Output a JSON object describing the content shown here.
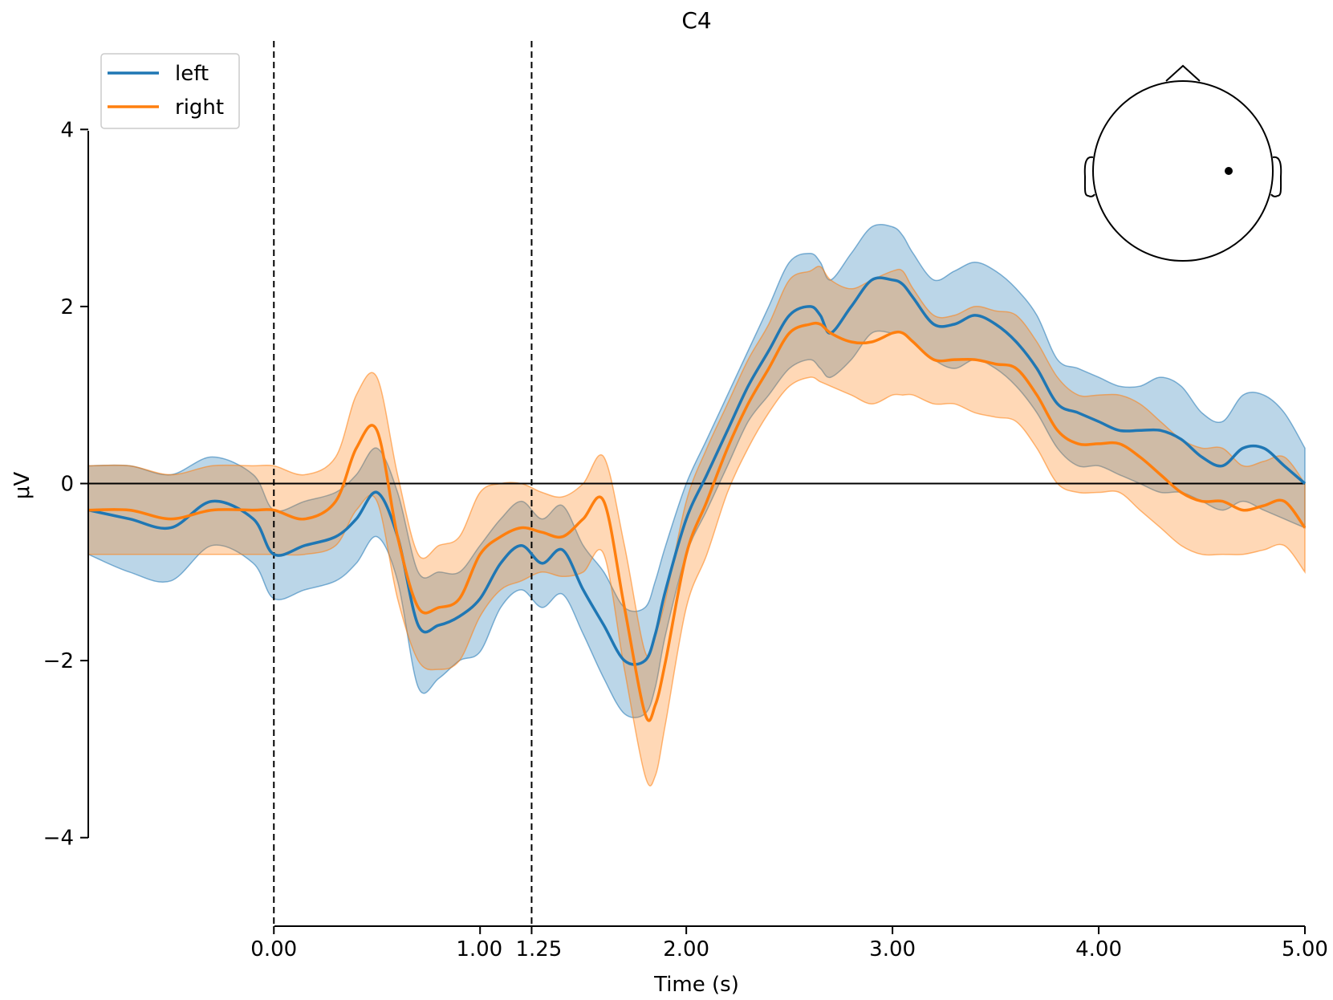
{
  "chart_data": {
    "type": "line",
    "title": "C4",
    "xlabel": "Time (s)",
    "ylabel": "μV",
    "xlim": [
      -0.9,
      5.0
    ],
    "ylim": [
      -5.0,
      5.0
    ],
    "x_ticks": [
      0.0,
      1.0,
      1.25,
      2.0,
      3.0,
      4.0,
      5.0
    ],
    "x_tick_labels": [
      "0.00",
      "1.00",
      "1.25",
      "2.00",
      "3.00",
      "4.00",
      "5.00"
    ],
    "y_ticks": [
      -4,
      -2,
      0,
      2,
      4
    ],
    "y_tick_labels": [
      "−4",
      "−2",
      "0",
      "2",
      "4"
    ],
    "vlines": [
      0.0,
      1.25
    ],
    "hline": 0,
    "legend": {
      "position": "top-left",
      "entries": [
        "left",
        "right"
      ]
    },
    "colors": {
      "left": "#1f77b4",
      "right": "#ff7f0e",
      "left_fill": "#1f77b4",
      "right_fill": "#ff7f0e"
    },
    "sensor_inset": {
      "position": "top-right",
      "channel": "C4"
    },
    "series": [
      {
        "name": "left",
        "color": "#1f77b4",
        "x": [
          -0.9,
          -0.7,
          -0.5,
          -0.3,
          -0.1,
          0.0,
          0.15,
          0.3,
          0.4,
          0.5,
          0.6,
          0.7,
          0.8,
          0.9,
          1.0,
          1.1,
          1.2,
          1.3,
          1.4,
          1.5,
          1.6,
          1.7,
          1.8,
          1.85,
          1.9,
          2.0,
          2.1,
          2.2,
          2.3,
          2.4,
          2.5,
          2.6,
          2.65,
          2.7,
          2.8,
          2.9,
          3.0,
          3.05,
          3.1,
          3.2,
          3.3,
          3.4,
          3.5,
          3.6,
          3.7,
          3.8,
          3.9,
          4.0,
          4.1,
          4.2,
          4.3,
          4.4,
          4.5,
          4.6,
          4.7,
          4.8,
          4.9,
          5.0
        ],
        "y": [
          -0.3,
          -0.4,
          -0.5,
          -0.2,
          -0.4,
          -0.8,
          -0.7,
          -0.6,
          -0.4,
          -0.1,
          -0.6,
          -1.6,
          -1.6,
          -1.5,
          -1.3,
          -0.9,
          -0.7,
          -0.9,
          -0.75,
          -1.2,
          -1.6,
          -2.0,
          -2.0,
          -1.7,
          -1.2,
          -0.4,
          0.1,
          0.6,
          1.1,
          1.5,
          1.9,
          2.0,
          1.9,
          1.7,
          2.0,
          2.3,
          2.3,
          2.25,
          2.1,
          1.8,
          1.8,
          1.9,
          1.8,
          1.6,
          1.3,
          0.9,
          0.8,
          0.7,
          0.6,
          0.6,
          0.6,
          0.5,
          0.3,
          0.2,
          0.4,
          0.4,
          0.2,
          0.0
        ],
        "lower": [
          -0.8,
          -1.0,
          -1.1,
          -0.7,
          -0.9,
          -1.3,
          -1.2,
          -1.1,
          -0.9,
          -0.6,
          -1.1,
          -2.3,
          -2.2,
          -2.0,
          -1.9,
          -1.4,
          -1.2,
          -1.4,
          -1.25,
          -1.7,
          -2.2,
          -2.6,
          -2.6,
          -2.3,
          -1.7,
          -0.8,
          -0.3,
          0.2,
          0.7,
          1.0,
          1.3,
          1.4,
          1.3,
          1.2,
          1.4,
          1.7,
          1.7,
          1.7,
          1.6,
          1.4,
          1.3,
          1.4,
          1.3,
          1.1,
          0.8,
          0.4,
          0.2,
          0.2,
          0.1,
          0.0,
          -0.1,
          -0.1,
          -0.2,
          -0.3,
          -0.2,
          -0.3,
          -0.4,
          -0.5
        ],
        "upper": [
          0.2,
          0.2,
          0.1,
          0.3,
          0.1,
          -0.3,
          -0.2,
          -0.1,
          0.1,
          0.4,
          -0.1,
          -1.0,
          -1.0,
          -1.0,
          -0.7,
          -0.4,
          -0.2,
          -0.4,
          -0.25,
          -0.7,
          -1.0,
          -1.4,
          -1.4,
          -1.1,
          -0.7,
          0.0,
          0.5,
          1.0,
          1.5,
          2.0,
          2.5,
          2.6,
          2.5,
          2.3,
          2.6,
          2.9,
          2.9,
          2.8,
          2.6,
          2.3,
          2.4,
          2.5,
          2.4,
          2.2,
          1.9,
          1.4,
          1.3,
          1.2,
          1.1,
          1.1,
          1.2,
          1.1,
          0.8,
          0.7,
          1.0,
          1.0,
          0.8,
          0.4
        ]
      },
      {
        "name": "right",
        "color": "#ff7f0e",
        "x": [
          -0.9,
          -0.7,
          -0.5,
          -0.3,
          -0.1,
          0.0,
          0.15,
          0.3,
          0.4,
          0.5,
          0.6,
          0.7,
          0.8,
          0.9,
          1.0,
          1.1,
          1.2,
          1.3,
          1.4,
          1.5,
          1.6,
          1.7,
          1.8,
          1.85,
          1.9,
          2.0,
          2.1,
          2.2,
          2.3,
          2.4,
          2.5,
          2.6,
          2.65,
          2.7,
          2.8,
          2.9,
          3.0,
          3.05,
          3.1,
          3.2,
          3.3,
          3.4,
          3.5,
          3.6,
          3.7,
          3.8,
          3.9,
          4.0,
          4.1,
          4.2,
          4.3,
          4.4,
          4.5,
          4.6,
          4.7,
          4.8,
          4.9,
          5.0
        ],
        "y": [
          -0.3,
          -0.3,
          -0.4,
          -0.3,
          -0.3,
          -0.3,
          -0.4,
          -0.2,
          0.4,
          0.6,
          -0.6,
          -1.4,
          -1.4,
          -1.3,
          -0.8,
          -0.6,
          -0.5,
          -0.55,
          -0.6,
          -0.4,
          -0.2,
          -1.4,
          -2.6,
          -2.5,
          -2.0,
          -0.8,
          -0.2,
          0.4,
          0.9,
          1.3,
          1.7,
          1.8,
          1.8,
          1.7,
          1.6,
          1.6,
          1.7,
          1.7,
          1.6,
          1.4,
          1.4,
          1.4,
          1.35,
          1.3,
          1.0,
          0.6,
          0.45,
          0.45,
          0.45,
          0.3,
          0.1,
          -0.1,
          -0.2,
          -0.2,
          -0.3,
          -0.25,
          -0.2,
          -0.5
        ],
        "lower": [
          -0.8,
          -0.8,
          -0.8,
          -0.8,
          -0.8,
          -0.8,
          -0.8,
          -0.7,
          -0.3,
          -0.2,
          -1.3,
          -2.0,
          -2.1,
          -2.0,
          -1.5,
          -1.2,
          -1.1,
          -1.0,
          -1.05,
          -1.0,
          -0.8,
          -2.1,
          -3.3,
          -3.3,
          -2.7,
          -1.4,
          -0.8,
          -0.1,
          0.4,
          0.8,
          1.1,
          1.2,
          1.15,
          1.1,
          1.0,
          0.9,
          1.0,
          1.0,
          1.0,
          0.9,
          0.9,
          0.8,
          0.75,
          0.7,
          0.4,
          0.0,
          -0.1,
          -0.1,
          -0.1,
          -0.3,
          -0.5,
          -0.7,
          -0.8,
          -0.8,
          -0.8,
          -0.75,
          -0.7,
          -1.0
        ],
        "upper": [
          0.2,
          0.2,
          0.1,
          0.2,
          0.2,
          0.2,
          0.1,
          0.3,
          1.0,
          1.2,
          0.1,
          -0.8,
          -0.7,
          -0.6,
          -0.1,
          0.0,
          0.0,
          -0.1,
          -0.15,
          0.0,
          0.3,
          -0.7,
          -1.9,
          -1.7,
          -1.3,
          -0.2,
          0.4,
          0.9,
          1.4,
          1.8,
          2.3,
          2.4,
          2.45,
          2.3,
          2.2,
          2.3,
          2.4,
          2.4,
          2.2,
          1.9,
          1.9,
          2.0,
          1.95,
          1.9,
          1.6,
          1.2,
          1.0,
          1.0,
          1.0,
          0.9,
          0.7,
          0.5,
          0.4,
          0.4,
          0.2,
          0.25,
          0.3,
          0.0
        ]
      }
    ]
  }
}
